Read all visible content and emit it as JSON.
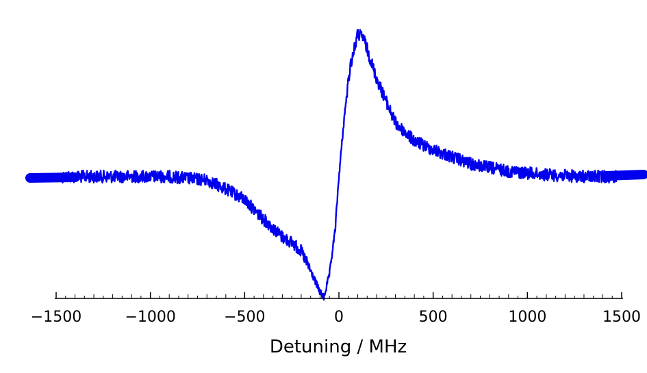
{
  "chart_data": {
    "type": "line",
    "title": "",
    "xlabel": "Detuning / MHz",
    "ylabel": "",
    "xlim": [
      -1500,
      1500
    ],
    "x_ticks": [
      -1500,
      -1000,
      -500,
      0,
      500,
      1000,
      1500
    ],
    "x_tick_labels": [
      "−1500",
      "−1000",
      "−500",
      "0",
      "500",
      "1000",
      "1500"
    ],
    "minor_tick_step": 50,
    "y_ticks_shown": false,
    "grid": false,
    "legend": "none",
    "series": [
      {
        "color": "#0000ee",
        "x": [
          -1500,
          -1300,
          -1100,
          -900,
          -700,
          -600,
          -500,
          -400,
          -300,
          -250,
          -200,
          -150,
          -100,
          -80,
          -50,
          -20,
          0,
          30,
          60,
          100,
          130,
          200,
          300,
          400,
          500,
          700,
          900,
          1100,
          1300,
          1500
        ],
        "y": [
          0.0,
          0.0,
          0.0,
          0.0,
          -0.02,
          -0.07,
          -0.13,
          -0.24,
          -0.34,
          -0.37,
          -0.42,
          -0.53,
          -0.65,
          -0.68,
          -0.55,
          -0.3,
          0.0,
          0.35,
          0.62,
          0.8,
          0.78,
          0.55,
          0.3,
          0.2,
          0.15,
          0.07,
          0.03,
          0.01,
          0.0,
          0.0
        ]
      }
    ]
  }
}
